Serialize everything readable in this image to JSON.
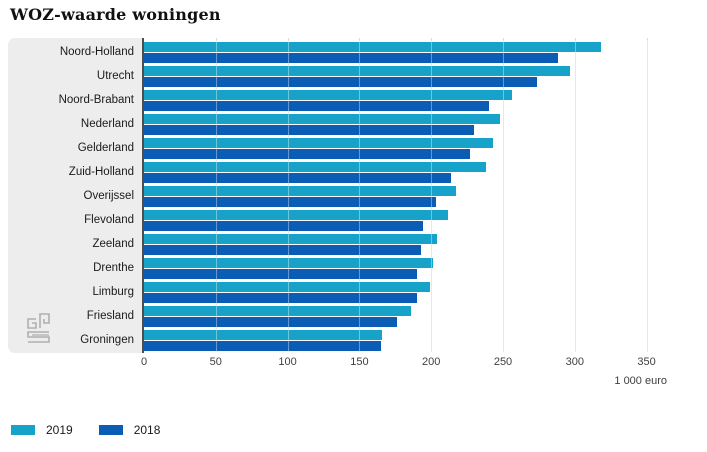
{
  "title": "WOZ-waarde woningen",
  "chart_data": {
    "type": "bar",
    "orientation": "horizontal",
    "title": "WOZ-waarde woningen",
    "categories": [
      "Noord-Holland",
      "Utrecht",
      "Noord-Brabant",
      "Nederland",
      "Gelderland",
      "Zuid-Holland",
      "Overijssel",
      "Flevoland",
      "Zeeland",
      "Drenthe",
      "Limburg",
      "Friesland",
      "Groningen"
    ],
    "series": [
      {
        "name": "2019",
        "color": "#17a3c9",
        "values": [
          318,
          297,
          256,
          248,
          243,
          238,
          217,
          212,
          204,
          201,
          199,
          186,
          166
        ]
      },
      {
        "name": "2018",
        "color": "#0b5cb5",
        "values": [
          288,
          274,
          240,
          230,
          227,
          214,
          203,
          194,
          193,
          190,
          190,
          176,
          165
        ]
      }
    ],
    "x_ticks": [
      0,
      50,
      100,
      150,
      200,
      250,
      300,
      350
    ],
    "xlim": [
      0,
      380
    ],
    "xlabel_unit": "1 000 euro",
    "grid": "vertical",
    "legend_position": "bottom-left"
  },
  "colors": {
    "series_2019": "#17a3c9",
    "series_2018": "#0b5cb5",
    "label_panel": "#ededed",
    "axis_line": "#4d4d4d",
    "gridline": "#d9d9d9"
  },
  "logo": {
    "name": "cbs-logo"
  }
}
